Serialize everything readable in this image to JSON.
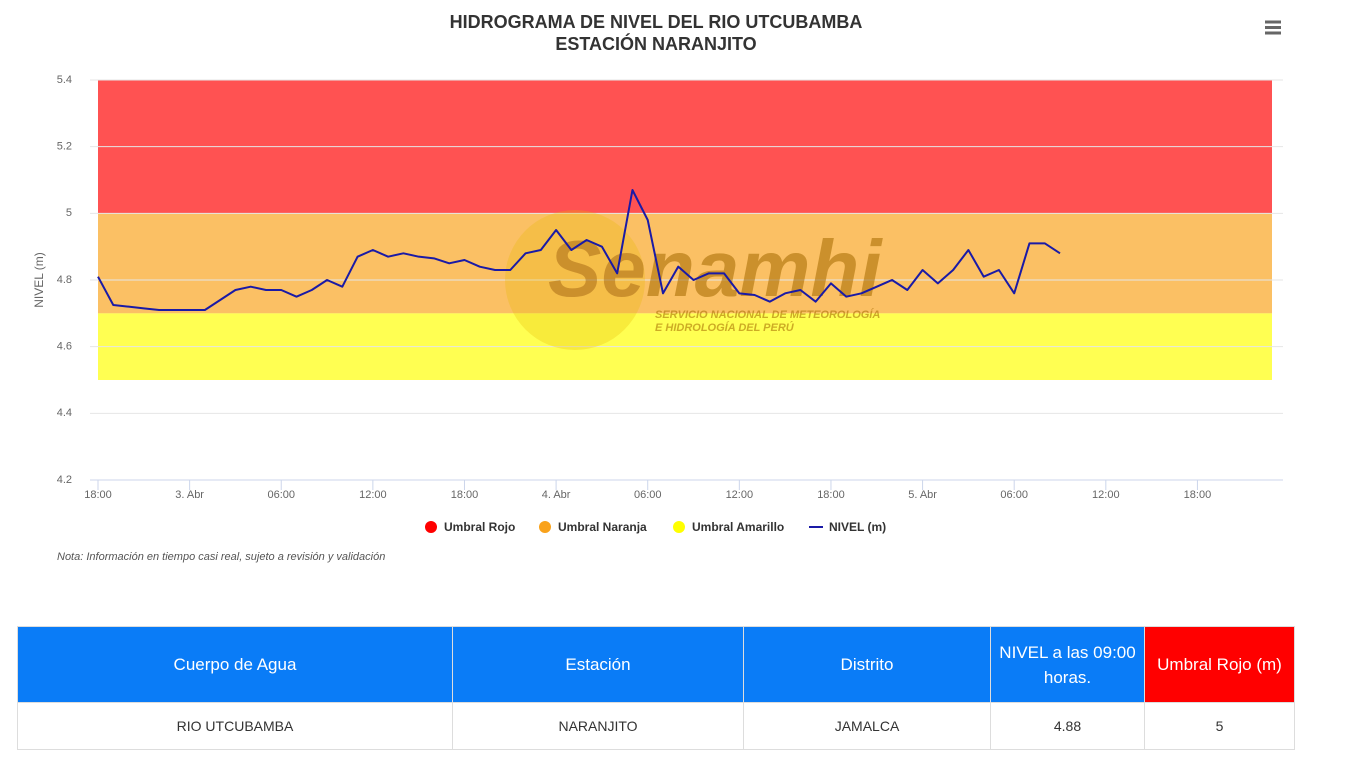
{
  "chart_data": {
    "type": "line",
    "title": "HIDROGRAMA DE NIVEL DEL RIO UTCUBAMBA",
    "subtitle": "ESTACIÓN NARANJITO",
    "y_label": "NIVEL (m)",
    "note": "Nota: Información en tiempo casi real, sujeto a revisión y validación",
    "watermark": {
      "name": "Senamhi",
      "line1": "SERVICIO NACIONAL DE METEOROLOGÍA",
      "line2": "E HIDROLOGÍA DEL PERÚ"
    },
    "x": [
      0,
      1,
      2,
      3,
      4,
      5,
      6,
      7,
      8,
      9,
      10,
      11,
      12,
      13,
      14,
      15,
      16,
      17,
      18,
      19,
      20,
      21,
      22,
      23,
      24,
      25,
      26,
      27,
      28,
      29,
      30,
      31,
      32,
      33,
      34,
      35,
      36,
      37,
      38,
      39,
      40,
      41,
      42,
      43,
      44,
      45,
      46,
      47,
      48,
      49,
      50,
      51,
      52,
      53,
      54,
      55,
      56,
      57,
      58,
      59,
      60,
      61,
      62,
      63
    ],
    "xlim": [
      0,
      77.6
    ],
    "xticks": [
      {
        "value": 0,
        "label": "18:00"
      },
      {
        "value": 6,
        "label": "3. Abr"
      },
      {
        "value": 12,
        "label": "06:00"
      },
      {
        "value": 18,
        "label": "12:00"
      },
      {
        "value": 24,
        "label": "18:00"
      },
      {
        "value": 30,
        "label": "4. Abr"
      },
      {
        "value": 36,
        "label": "06:00"
      },
      {
        "value": 42,
        "label": "12:00"
      },
      {
        "value": 48,
        "label": "18:00"
      },
      {
        "value": 54,
        "label": "5. Abr"
      },
      {
        "value": 60,
        "label": "06:00"
      },
      {
        "value": 66,
        "label": "12:00"
      },
      {
        "value": 72,
        "label": "18:00"
      }
    ],
    "ylim": [
      4.2,
      5.4
    ],
    "yticks": [
      4.2,
      4.4,
      4.6,
      4.8,
      5,
      5.2,
      5.4
    ],
    "grid": true,
    "series": [
      {
        "name": "Umbral Rojo",
        "color": "#ff0000",
        "range": [
          5,
          5.4
        ]
      },
      {
        "name": "Umbral Naranja",
        "color": "#f9a21b",
        "range": [
          4.7,
          5
        ]
      },
      {
        "name": "Umbral Amarillo",
        "color": "#ffff00",
        "range": [
          4.5,
          4.7
        ]
      },
      {
        "name": "NIVEL (m)",
        "color": "#1a1aa6",
        "values": [
          4.81,
          4.725,
          4.72,
          4.715,
          4.71,
          4.71,
          4.71,
          4.71,
          4.74,
          4.77,
          4.78,
          4.77,
          4.77,
          4.75,
          4.77,
          4.8,
          4.78,
          4.87,
          4.89,
          4.87,
          4.88,
          4.87,
          4.865,
          4.85,
          4.86,
          4.84,
          4.83,
          4.83,
          4.88,
          4.89,
          4.95,
          4.89,
          4.92,
          4.9,
          4.82,
          5.07,
          4.98,
          4.76,
          4.84,
          4.8,
          4.82,
          4.82,
          4.76,
          4.755,
          4.735,
          4.76,
          4.77,
          4.735,
          4.79,
          4.75,
          4.76,
          4.78,
          4.8,
          4.77,
          4.83,
          4.79,
          4.83,
          4.89,
          4.81,
          4.83,
          4.76,
          4.91,
          4.91,
          4.88
        ]
      }
    ]
  },
  "table": {
    "headers": [
      "Cuerpo de Agua",
      "Estación",
      "Distrito",
      "NIVEL a las 09:00 horas.",
      "Umbral Rojo (m)"
    ],
    "rows": [
      [
        "RIO UTCUBAMBA",
        "NARANJITO",
        "JAMALCA",
        "4.88",
        "5"
      ]
    ]
  }
}
